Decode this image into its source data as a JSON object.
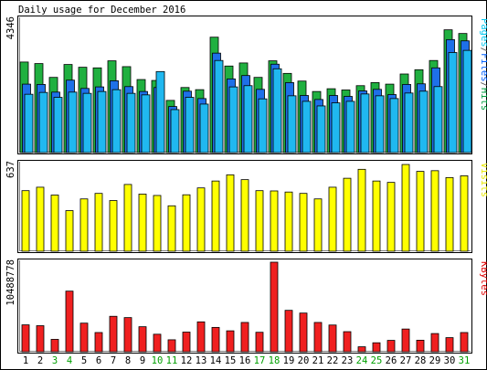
{
  "chart_data": [
    {
      "type": "bar",
      "title": "Daily usage for December 2016",
      "ylabel_parts": [
        {
          "text": "Pages",
          "color": "#00c8f0"
        },
        {
          "text": "/",
          "color": "#5a5a5a"
        },
        {
          "text": "Files",
          "color": "#0060ff"
        },
        {
          "text": "/",
          "color": "#5a5a5a"
        },
        {
          "text": "Hits",
          "color": "#009e40"
        }
      ],
      "ymax_label": "4346",
      "ylim": [
        0,
        4346
      ],
      "categories": [
        "1",
        "2",
        "3",
        "4",
        "5",
        "6",
        "7",
        "8",
        "9",
        "10",
        "11",
        "12",
        "13",
        "14",
        "15",
        "16",
        "17",
        "18",
        "19",
        "20",
        "21",
        "22",
        "23",
        "24",
        "25",
        "26",
        "27",
        "28",
        "29",
        "30",
        "31"
      ],
      "weekend_days": [
        "3",
        "4",
        "10",
        "11",
        "17",
        "18",
        "24",
        "25",
        "31"
      ],
      "series": [
        {
          "name": "Hits",
          "color": "#20b040",
          "values": [
            2950,
            2900,
            2450,
            2870,
            2780,
            2760,
            2990,
            2800,
            2380,
            2350,
            1700,
            2120,
            2050,
            3760,
            2820,
            2920,
            2450,
            2990,
            2580,
            2330,
            1990,
            2080,
            2040,
            2180,
            2280,
            2230,
            2560,
            2700,
            3000,
            4000,
            3880
          ]
        },
        {
          "name": "Files",
          "color": "#1e70e8",
          "values": [
            2230,
            2220,
            1970,
            2360,
            2090,
            2140,
            2340,
            2150,
            1990,
            2120,
            1500,
            2000,
            1760,
            3240,
            2400,
            2510,
            2060,
            2880,
            2280,
            1860,
            1730,
            1860,
            1830,
            2010,
            2060,
            1890,
            2220,
            2240,
            2760,
            3680,
            3640
          ]
        },
        {
          "name": "Pages",
          "color": "#20b8f0",
          "values": [
            1900,
            1960,
            1800,
            1970,
            1930,
            1990,
            2050,
            1930,
            1880,
            2640,
            1400,
            1800,
            1580,
            3000,
            2140,
            2180,
            1750,
            2730,
            1850,
            1670,
            1520,
            1620,
            1670,
            1910,
            1850,
            1760,
            1940,
            2000,
            2150,
            3260,
            3330
          ]
        }
      ]
    },
    {
      "type": "bar",
      "ylabel": "Visits",
      "ylabel_color": "#e8e800",
      "ymax_label": "637",
      "ylim": [
        0,
        637
      ],
      "categories": [
        "1",
        "2",
        "3",
        "4",
        "5",
        "6",
        "7",
        "8",
        "9",
        "10",
        "11",
        "12",
        "13",
        "14",
        "15",
        "16",
        "17",
        "18",
        "19",
        "20",
        "21",
        "22",
        "23",
        "24",
        "25",
        "26",
        "27",
        "28",
        "29",
        "30",
        "31"
      ],
      "series": [
        {
          "name": "Visits",
          "color": "#ffff00",
          "values": [
            440,
            465,
            408,
            295,
            380,
            420,
            368,
            485,
            415,
            405,
            330,
            410,
            460,
            510,
            555,
            520,
            440,
            438,
            430,
            420,
            380,
            465,
            530,
            595,
            510,
            500,
            630,
            580,
            585,
            535,
            548
          ]
        }
      ]
    },
    {
      "type": "bar",
      "ylabel": "KBytes",
      "ylabel_color": "#e00000",
      "ymax_label": "10488778",
      "ylim": [
        0,
        10488778
      ],
      "categories": [
        "1",
        "2",
        "3",
        "4",
        "5",
        "6",
        "7",
        "8",
        "9",
        "10",
        "11",
        "12",
        "13",
        "14",
        "15",
        "16",
        "17",
        "18",
        "19",
        "20",
        "21",
        "22",
        "23",
        "24",
        "25",
        "26",
        "27",
        "28",
        "29",
        "30",
        "31"
      ],
      "series": [
        {
          "name": "KBytes",
          "color": "#f02020",
          "values": [
            3150000,
            3050000,
            1450000,
            7100000,
            3350000,
            2250000,
            4150000,
            4000000,
            2930000,
            2050000,
            1400000,
            2300000,
            3500000,
            2850000,
            2450000,
            3430000,
            2280000,
            10488778,
            4850000,
            4530000,
            3430000,
            3130000,
            2350000,
            580000,
            1050000,
            1330000,
            2660000,
            1350000,
            2130000,
            1650000,
            2250000
          ]
        }
      ]
    }
  ]
}
